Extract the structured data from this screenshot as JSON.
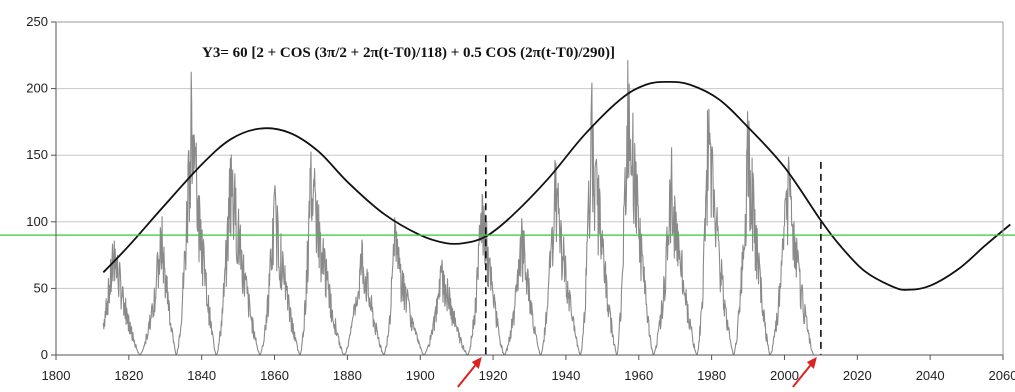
{
  "chart_data": {
    "type": "line",
    "title": "Y3= 60 [2 + COS (3π/2 + 2π(t-T0)/118) + 0.5 COS (2π(t-T0)/290)]",
    "xlabel": "",
    "ylabel": "",
    "xlim": [
      1800,
      2060
    ],
    "ylim": [
      0,
      250
    ],
    "x_ticks": [
      "1800",
      "1820",
      "1840",
      "1860",
      "1880",
      "1900",
      "1920",
      "1940",
      "1960",
      "1980",
      "2000",
      "2020",
      "2040",
      "2060"
    ],
    "y_ticks": [
      "0",
      "50",
      "100",
      "150",
      "200",
      "250"
    ],
    "grid": true,
    "series": [
      {
        "role": "model-curve",
        "points": [
          [
            1813,
            62
          ],
          [
            1820,
            82
          ],
          [
            1830,
            113
          ],
          [
            1840,
            143
          ],
          [
            1848,
            162
          ],
          [
            1856,
            170
          ],
          [
            1864,
            167
          ],
          [
            1872,
            153
          ],
          [
            1880,
            130
          ],
          [
            1890,
            106
          ],
          [
            1900,
            90
          ],
          [
            1907,
            84
          ],
          [
            1912,
            84
          ],
          [
            1918,
            89
          ],
          [
            1925,
            104
          ],
          [
            1935,
            132
          ],
          [
            1945,
            165
          ],
          [
            1955,
            192
          ],
          [
            1962,
            203
          ],
          [
            1968,
            205
          ],
          [
            1974,
            203
          ],
          [
            1982,
            192
          ],
          [
            1990,
            171
          ],
          [
            2000,
            141
          ],
          [
            2010,
            101
          ],
          [
            2015,
            83
          ],
          [
            2022,
            63
          ],
          [
            2030,
            51
          ],
          [
            2034,
            49
          ],
          [
            2040,
            52
          ],
          [
            2048,
            65
          ],
          [
            2055,
            82
          ],
          [
            2062,
            98
          ]
        ]
      },
      {
        "role": "sunspot-record",
        "cycle_peaks": [
          [
            1816,
            92
          ],
          [
            1829,
            105
          ],
          [
            1837,
            208
          ],
          [
            1848,
            162
          ],
          [
            1860,
            128
          ],
          [
            1870,
            158
          ],
          [
            1884,
            90
          ],
          [
            1893,
            100
          ],
          [
            1906,
            75
          ],
          [
            1917,
            130
          ],
          [
            1928,
            102
          ],
          [
            1937,
            147
          ],
          [
            1947,
            200
          ],
          [
            1957,
            245
          ],
          [
            1969,
            150
          ],
          [
            1979,
            190
          ],
          [
            1990,
            185
          ],
          [
            2001,
            150
          ]
        ],
        "cycle_minima": [
          1810,
          1823,
          1833,
          1844,
          1856,
          1867,
          1879,
          1890,
          1901,
          1913,
          1923,
          1933,
          1944,
          1954,
          1964,
          1976,
          1986,
          1996,
          2008
        ]
      }
    ],
    "reference_lines": [
      {
        "type": "horizontal",
        "y": 90,
        "color": "#33cc33"
      },
      {
        "type": "vertical",
        "x": 1918,
        "y_top": 150,
        "style": "dashed"
      },
      {
        "type": "vertical",
        "x": 2010,
        "y_top": 145,
        "style": "dashed"
      }
    ],
    "annotations": [
      {
        "type": "arrow",
        "target_x": 1918,
        "color": "#dd2222"
      },
      {
        "type": "arrow",
        "target_x": 2010,
        "color": "#dd2222"
      }
    ],
    "colors": {
      "curve": "#111111",
      "record": "#8a8a8a",
      "grid": "#c8c8c8",
      "reference": "#33cc33",
      "arrow": "#dd2222"
    }
  }
}
